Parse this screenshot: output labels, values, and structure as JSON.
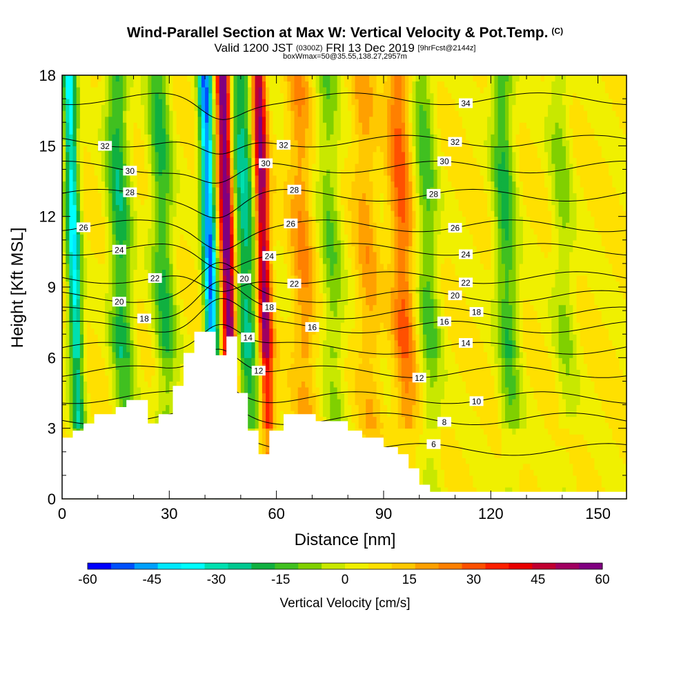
{
  "header": {
    "title": "Wind-Parallel Section at Max W: Vertical Velocity & Pot.Temp.",
    "title_mark": "(C)",
    "valid_prefix": "Valid 1200 JST",
    "valid_utc": "(0300Z)",
    "valid_date": "FRI 13 Dec 2019",
    "forecast_info": "[9hrFcst@2144z]",
    "box_info": "boxWmax=50@35.55,138.27,2957m"
  },
  "chart_data": {
    "type": "heatmap",
    "xlabel": "Distance [nm]",
    "ylabel": "Height [Kft MSL]",
    "xlim": [
      0,
      158
    ],
    "ylim": [
      0,
      18
    ],
    "xticks": [
      "0",
      "30",
      "60",
      "90",
      "120",
      "150"
    ],
    "yticks": [
      "0",
      "3",
      "6",
      "9",
      "12",
      "15",
      "18"
    ],
    "colorbar": {
      "label": "Vertical Velocity [cm/s]",
      "min": -60,
      "max": 60,
      "tick_labels": [
        "-60",
        "-45",
        "-30",
        "-15",
        "0",
        "15",
        "30",
        "45",
        "60"
      ],
      "colors": [
        "#0000ff",
        "#0050ff",
        "#00a0ff",
        "#00e8ff",
        "#00ffff",
        "#00e0b0",
        "#00c890",
        "#10b040",
        "#40c020",
        "#80d000",
        "#c8e800",
        "#f0f000",
        "#ffe000",
        "#ffc800",
        "#ffa000",
        "#ff8000",
        "#ff5000",
        "#ff2000",
        "#e80000",
        "#c00030",
        "#a00060",
        "#800080"
      ]
    },
    "updraft_bands": [
      {
        "x": 46,
        "w": 60
      },
      {
        "x": 56,
        "w": 50
      },
      {
        "x": 95,
        "w": 22
      },
      {
        "x": 67,
        "w": 15
      },
      {
        "x": 85,
        "w": 12
      }
    ],
    "downdraft_bands": [
      {
        "x": 3,
        "w": -42
      },
      {
        "x": 41,
        "w": -55
      },
      {
        "x": 51,
        "w": -30
      },
      {
        "x": 16,
        "w": -25
      },
      {
        "x": 28,
        "w": -22
      },
      {
        "x": 75,
        "w": -15
      },
      {
        "x": 102,
        "w": -18
      },
      {
        "x": 124,
        "w": -22
      },
      {
        "x": 140,
        "w": -12
      }
    ],
    "terrain": [
      [
        0,
        2.6
      ],
      [
        3,
        2.6
      ],
      [
        3,
        2.9
      ],
      [
        6,
        2.9
      ],
      [
        6,
        3.2
      ],
      [
        9,
        3.2
      ],
      [
        9,
        3.6
      ],
      [
        15,
        3.6
      ],
      [
        15,
        3.9
      ],
      [
        18,
        3.9
      ],
      [
        18,
        4.2
      ],
      [
        24,
        4.2
      ],
      [
        24,
        3.2
      ],
      [
        27,
        3.2
      ],
      [
        27,
        3.6
      ],
      [
        31,
        3.6
      ],
      [
        31,
        4.8
      ],
      [
        34,
        4.8
      ],
      [
        34,
        6.2
      ],
      [
        37,
        6.2
      ],
      [
        37,
        7.1
      ],
      [
        43,
        7.1
      ],
      [
        43,
        6.1
      ],
      [
        46,
        6.1
      ],
      [
        46,
        6.9
      ],
      [
        49,
        6.9
      ],
      [
        49,
        4.5
      ],
      [
        52,
        4.5
      ],
      [
        52,
        2.9
      ],
      [
        55,
        2.9
      ],
      [
        55,
        1.9
      ],
      [
        58,
        1.9
      ],
      [
        58,
        2.9
      ],
      [
        62,
        2.9
      ],
      [
        62,
        3.6
      ],
      [
        71,
        3.6
      ],
      [
        71,
        3.3
      ],
      [
        80,
        3.3
      ],
      [
        80,
        2.9
      ],
      [
        84,
        2.9
      ],
      [
        84,
        2.6
      ],
      [
        90,
        2.6
      ],
      [
        90,
        2.2
      ],
      [
        94,
        2.2
      ],
      [
        94,
        1.9
      ],
      [
        97,
        1.9
      ],
      [
        97,
        1.3
      ],
      [
        100,
        1.3
      ],
      [
        100,
        0.6
      ],
      [
        103,
        0.6
      ],
      [
        103,
        0.3
      ],
      [
        158,
        0.3
      ],
      [
        158,
        0
      ]
    ],
    "isentropes": [
      {
        "label": "6",
        "base": 2.1,
        "lx": 104
      },
      {
        "label": "8",
        "base": 3.4,
        "lx": 107
      },
      {
        "label": "10",
        "base": 4.3,
        "lx": 116
      },
      {
        "label": "12",
        "base": 5.4,
        "lx": 100,
        "lx2": 55
      },
      {
        "label": "14",
        "base": 6.4,
        "lx": 113,
        "lx2": 52
      },
      {
        "label": "16",
        "base": 7.3,
        "lx": 107,
        "lx2": 70
      },
      {
        "label": "18",
        "base": 7.9,
        "lx": 116,
        "lx2": 23,
        "lx3": 58
      },
      {
        "label": "20",
        "base": 8.6,
        "lx": 110,
        "lx2": 16,
        "lx3": 51
      },
      {
        "label": "22",
        "base": 9.4,
        "lx": 113,
        "lx2": 26,
        "lx3": 65
      },
      {
        "label": "24",
        "base": 10.6,
        "lx": 113,
        "lx2": 16,
        "lx3": 58
      },
      {
        "label": "26",
        "base": 11.6,
        "lx": 110,
        "lx2": 6,
        "lx3": 64
      },
      {
        "label": "28",
        "base": 12.9,
        "lx": 104,
        "lx2": 19,
        "lx3": 65
      },
      {
        "label": "30",
        "base": 14.1,
        "lx": 107,
        "lx2": 19,
        "lx3": 57
      },
      {
        "label": "32",
        "base": 15.2,
        "lx": 110,
        "lx2": 12,
        "lx3": 62
      },
      {
        "label": "34",
        "base": 17.0,
        "lx": 113
      }
    ]
  }
}
